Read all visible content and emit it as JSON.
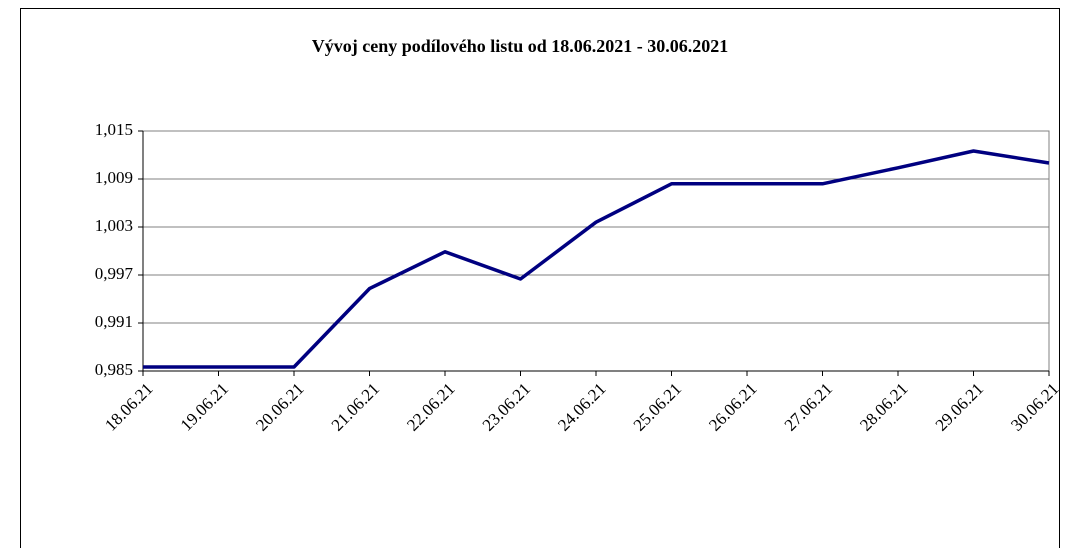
{
  "chart_data": {
    "type": "line",
    "title": "Vývoj ceny podílového listu od 18.06.2021 - 30.06.2021",
    "categories": [
      "18.06.21",
      "19.06.21",
      "20.06.21",
      "21.06.21",
      "22.06.21",
      "23.06.21",
      "24.06.21",
      "25.06.21",
      "26.06.21",
      "27.06.21",
      "28.06.21",
      "29.06.21",
      "30.06.21"
    ],
    "values": [
      0.9855,
      0.9855,
      0.9855,
      0.9953,
      0.9999,
      0.9965,
      1.0036,
      1.0084,
      1.0084,
      1.0084,
      1.0104,
      1.0125,
      1.011
    ],
    "color": "#000080",
    "ylim": [
      0.985,
      1.015
    ],
    "yticks": [
      {
        "value": 0.985,
        "label": "0,985"
      },
      {
        "value": 0.991,
        "label": "0,991"
      },
      {
        "value": 0.997,
        "label": "0,997"
      },
      {
        "value": 1.003,
        "label": "1,003"
      },
      {
        "value": 1.009,
        "label": "1,009"
      },
      {
        "value": 1.015,
        "label": "1,015"
      }
    ],
    "grid": true
  }
}
